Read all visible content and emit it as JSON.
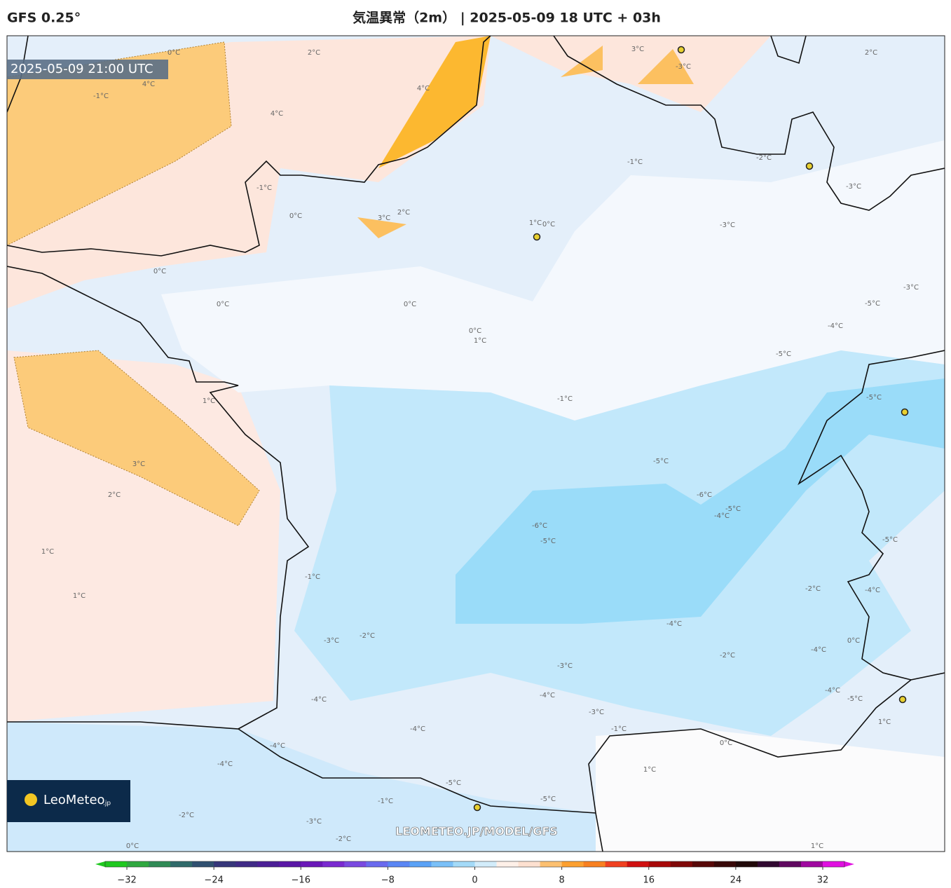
{
  "header": {
    "model": "GFS 0.25°",
    "title": "気温異常（2m） | 2025-05-09 18 UTC + 03h"
  },
  "map": {
    "valid_time": "2025-05-09 21:00 UTC",
    "watermark": "LEOMETEO.JP/MODEL/GFS",
    "logo": {
      "name": "LeoMeteo",
      "suffix": ".jp"
    },
    "contour_labels": [
      "0°C",
      "2°C",
      "3°C",
      "-3°C",
      "2°C",
      "4°C",
      "4°C",
      "4°C",
      "-1°C",
      "0°C",
      "-2°C",
      "-3°C",
      "-1°C",
      "-1°C",
      "2°C",
      "3°C",
      "1°C",
      "0°C",
      "-3°C",
      "0°C",
      "0°C",
      "0°C",
      "0°C",
      "1°C",
      "-5°C",
      "-4°C",
      "-5°C",
      "-3°C",
      "1°C",
      "-1°C",
      "-5°C",
      "-5°C",
      "3°C",
      "2°C",
      "-6°C",
      "-5°C",
      "-6°C",
      "-4°C",
      "-5°C",
      "-5°C",
      "1°C",
      "1°C",
      "-1°C",
      "-3°C",
      "-2°C",
      "-4°C",
      "-4°C",
      "-2°C",
      "0°C",
      "-4°C",
      "-5°C",
      "-4°C",
      "-3°C",
      "-3°C",
      "-1°C",
      "0°C",
      "-4°C",
      "-4°C",
      "-5°C",
      "1°C",
      "-2°C",
      "-1°C",
      "-2°C",
      "-3°C",
      "-5°C",
      "1°C",
      "1°C",
      "0°C",
      "-4°C",
      "-4°C",
      "-2°C",
      "-4°C"
    ]
  },
  "chart_data": {
    "type": "colorbar",
    "range": [
      -34,
      34
    ],
    "step": 2,
    "colors": [
      "#1fc81f",
      "#2fa83f",
      "#2f8a55",
      "#2f6a6a",
      "#305070",
      "#36367a",
      "#3f2a86",
      "#4b1f96",
      "#5a17a6",
      "#6a18b8",
      "#7a2ad0",
      "#7a4ae0",
      "#6a6aee",
      "#5a86f4",
      "#5aa2f6",
      "#7ac0f8",
      "#a4daf8",
      "#d2ecfa",
      "#fef0e8",
      "#fde0d0",
      "#fcc070",
      "#fca030",
      "#f88020",
      "#f04020",
      "#d01010",
      "#a80808",
      "#800808",
      "#580808",
      "#380808",
      "#200808",
      "#300830",
      "#600860",
      "#a008a0",
      "#e010e0"
    ],
    "ticks": [
      {
        "value": -32,
        "label": "−32"
      },
      {
        "value": -24,
        "label": "−24"
      },
      {
        "value": -16,
        "label": "−16"
      },
      {
        "value": -8,
        "label": "−8"
      },
      0,
      8,
      16,
      24,
      32
    ]
  }
}
